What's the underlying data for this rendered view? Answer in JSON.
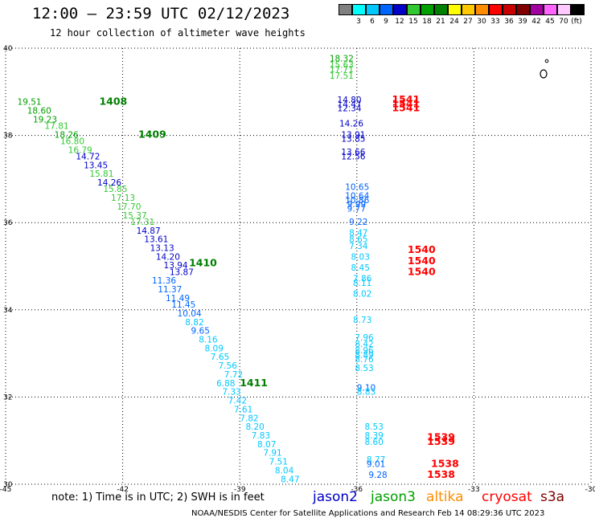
{
  "title": "12:00 – 23:59 UTC 02/12/2023",
  "subtitle": "12 hour collection of altimeter wave heights",
  "legend": {
    "unit": "(ft)",
    "bins": [
      {
        "label": "",
        "color": "#808080"
      },
      {
        "label": "3",
        "color": "#00ffff"
      },
      {
        "label": "6",
        "color": "#00c8ff"
      },
      {
        "label": "9",
        "color": "#0064ff"
      },
      {
        "label": "12",
        "color": "#0000c8"
      },
      {
        "label": "15",
        "color": "#32c832"
      },
      {
        "label": "18",
        "color": "#00a000"
      },
      {
        "label": "21",
        "color": "#008000"
      },
      {
        "label": "24",
        "color": "#ffff00"
      },
      {
        "label": "27",
        "color": "#ffc800"
      },
      {
        "label": "30",
        "color": "#ff8c00"
      },
      {
        "label": "33",
        "color": "#ff0000"
      },
      {
        "label": "36",
        "color": "#c80000"
      },
      {
        "label": "39",
        "color": "#800000"
      },
      {
        "label": "42",
        "color": "#a000a0"
      },
      {
        "label": "45",
        "color": "#ff64ff"
      },
      {
        "label": "70",
        "color": "#ffc8ff"
      },
      {
        "label": "",
        "color": "#000000"
      }
    ]
  },
  "axes": {
    "x_ticks": [
      "-45",
      "-42",
      "-39",
      "-36",
      "-33",
      "-30"
    ],
    "y_ticks": [
      "40",
      "38",
      "36",
      "34",
      "32",
      "30"
    ],
    "lon_range": [
      -45,
      -30
    ],
    "lat_range": [
      30,
      40
    ]
  },
  "note": "note: 1) Time is in UTC; 2) SWH is in feet",
  "satellites": [
    {
      "name": "jason2",
      "color": "#0000c8"
    },
    {
      "name": "jason3",
      "color": "#00a000"
    },
    {
      "name": "altika",
      "color": "#ff8c00"
    },
    {
      "name": "cryosat",
      "color": "#ff0000"
    },
    {
      "name": "s3a",
      "color": "#800000"
    }
  ],
  "credit": "NOAA/NESDIS Center for Satellite Applications and Research    Feb 14 08:29:36 UTC 2023",
  "time_labels": [
    {
      "text": "1408",
      "lon": -42.6,
      "lat": 38.7,
      "color": "#008000"
    },
    {
      "text": "1409",
      "lon": -41.6,
      "lat": 37.95,
      "color": "#008000"
    },
    {
      "text": "1410",
      "lon": -40.3,
      "lat": 35.0,
      "color": "#008000"
    },
    {
      "text": "1411",
      "lon": -39.0,
      "lat": 32.25,
      "color": "#008000"
    },
    {
      "text": "1541",
      "lon": -35.1,
      "lat": 38.75,
      "color": "#ff0000"
    },
    {
      "text": "1541",
      "lon": -35.1,
      "lat": 38.65,
      "color": "#ff0000"
    },
    {
      "text": "1541",
      "lon": -35.1,
      "lat": 38.55,
      "color": "#ff0000"
    },
    {
      "text": "1540",
      "lon": -34.7,
      "lat": 35.3,
      "color": "#ff0000"
    },
    {
      "text": "1540",
      "lon": -34.7,
      "lat": 35.05,
      "color": "#ff0000"
    },
    {
      "text": "1540",
      "lon": -34.7,
      "lat": 34.8,
      "color": "#ff0000"
    },
    {
      "text": "1539",
      "lon": -34.2,
      "lat": 31.0,
      "color": "#ff0000"
    },
    {
      "text": "1539",
      "lon": -34.2,
      "lat": 30.9,
      "color": "#ff0000"
    },
    {
      "text": "1538",
      "lon": -34.1,
      "lat": 30.4,
      "color": "#ff0000"
    },
    {
      "text": "1538",
      "lon": -34.2,
      "lat": 30.15,
      "color": "#ff0000"
    }
  ],
  "chart_data": {
    "type": "scatter",
    "title": "12:00 – 23:59 UTC 02/12/2023",
    "xlim": [
      -45,
      -30
    ],
    "ylim": [
      30,
      40
    ],
    "points": [
      {
        "lon": -44.7,
        "lat": 38.7,
        "v": "19.51"
      },
      {
        "lon": -44.45,
        "lat": 38.5,
        "v": "18.60"
      },
      {
        "lon": -44.3,
        "lat": 38.3,
        "v": "19.23"
      },
      {
        "lon": -44.0,
        "lat": 38.15,
        "v": "17.81"
      },
      {
        "lon": -43.75,
        "lat": 37.95,
        "v": "18.26"
      },
      {
        "lon": -43.6,
        "lat": 37.8,
        "v": "16.80"
      },
      {
        "lon": -43.4,
        "lat": 37.6,
        "v": "16.79"
      },
      {
        "lon": -43.2,
        "lat": 37.45,
        "v": "14.72"
      },
      {
        "lon": -43.0,
        "lat": 37.25,
        "v": "13.45"
      },
      {
        "lon": -42.85,
        "lat": 37.05,
        "v": "15.81"
      },
      {
        "lon": -42.65,
        "lat": 36.85,
        "v": "14.26"
      },
      {
        "lon": -42.5,
        "lat": 36.7,
        "v": "15.85"
      },
      {
        "lon": -42.3,
        "lat": 36.5,
        "v": "17.13"
      },
      {
        "lon": -42.15,
        "lat": 36.3,
        "v": "17.70"
      },
      {
        "lon": -42.0,
        "lat": 36.1,
        "v": "15.37"
      },
      {
        "lon": -41.8,
        "lat": 35.95,
        "v": "17.31"
      },
      {
        "lon": -41.65,
        "lat": 35.75,
        "v": "14.87"
      },
      {
        "lon": -41.45,
        "lat": 35.55,
        "v": "13.61"
      },
      {
        "lon": -41.3,
        "lat": 35.35,
        "v": "13.13"
      },
      {
        "lon": -41.15,
        "lat": 35.15,
        "v": "14.20"
      },
      {
        "lon": -40.95,
        "lat": 34.95,
        "v": "13.94"
      },
      {
        "lon": -40.8,
        "lat": 34.8,
        "v": "13.87"
      },
      {
        "lon": -41.25,
        "lat": 34.6,
        "v": "11.36"
      },
      {
        "lon": -41.1,
        "lat": 34.4,
        "v": "11.37"
      },
      {
        "lon": -40.9,
        "lat": 34.2,
        "v": "11.49"
      },
      {
        "lon": -40.75,
        "lat": 34.05,
        "v": "11.45"
      },
      {
        "lon": -40.6,
        "lat": 33.85,
        "v": "10.04"
      },
      {
        "lon": -40.4,
        "lat": 33.65,
        "v": "8.82"
      },
      {
        "lon": -40.25,
        "lat": 33.45,
        "v": "9.65"
      },
      {
        "lon": -40.05,
        "lat": 33.25,
        "v": "8.16"
      },
      {
        "lon": -39.9,
        "lat": 33.05,
        "v": "8.09"
      },
      {
        "lon": -39.75,
        "lat": 32.85,
        "v": "7.65"
      },
      {
        "lon": -39.55,
        "lat": 32.65,
        "v": "7.56"
      },
      {
        "lon": -39.4,
        "lat": 32.45,
        "v": "7.72"
      },
      {
        "lon": -39.6,
        "lat": 32.25,
        "v": "6.88"
      },
      {
        "lon": -39.45,
        "lat": 32.05,
        "v": "7.33"
      },
      {
        "lon": -39.3,
        "lat": 31.85,
        "v": "7.42"
      },
      {
        "lon": -39.15,
        "lat": 31.65,
        "v": "7.61"
      },
      {
        "lon": -39.0,
        "lat": 31.45,
        "v": "7.82"
      },
      {
        "lon": -38.85,
        "lat": 31.25,
        "v": "8.20"
      },
      {
        "lon": -38.7,
        "lat": 31.05,
        "v": "7.83"
      },
      {
        "lon": -38.55,
        "lat": 30.85,
        "v": "8.07"
      },
      {
        "lon": -38.4,
        "lat": 30.65,
        "v": "7.91"
      },
      {
        "lon": -38.25,
        "lat": 30.45,
        "v": "7.51"
      },
      {
        "lon": -38.1,
        "lat": 30.25,
        "v": "8.04"
      },
      {
        "lon": -37.95,
        "lat": 30.05,
        "v": "8.47"
      },
      {
        "lon": -36.7,
        "lat": 39.7,
        "v": "18.32"
      },
      {
        "lon": -36.7,
        "lat": 39.55,
        "v": "15.63"
      },
      {
        "lon": -36.7,
        "lat": 39.45,
        "v": "17.71"
      },
      {
        "lon": -36.7,
        "lat": 39.3,
        "v": "17.51"
      },
      {
        "lon": -36.5,
        "lat": 38.75,
        "v": "14.80"
      },
      {
        "lon": -36.5,
        "lat": 38.65,
        "v": "14.47"
      },
      {
        "lon": -36.5,
        "lat": 38.55,
        "v": "12.34"
      },
      {
        "lon": -36.45,
        "lat": 38.2,
        "v": "14.26"
      },
      {
        "lon": -36.4,
        "lat": 37.95,
        "v": "13.91"
      },
      {
        "lon": -36.4,
        "lat": 37.85,
        "v": "13.85"
      },
      {
        "lon": -36.4,
        "lat": 37.55,
        "v": "13.66"
      },
      {
        "lon": -36.4,
        "lat": 37.45,
        "v": "12.56"
      },
      {
        "lon": -36.3,
        "lat": 36.75,
        "v": "10.65"
      },
      {
        "lon": -36.3,
        "lat": 36.55,
        "v": "10.64"
      },
      {
        "lon": -36.3,
        "lat": 36.45,
        "v": "10.86"
      },
      {
        "lon": -36.25,
        "lat": 36.35,
        "v": "9.99"
      },
      {
        "lon": -36.25,
        "lat": 36.25,
        "v": "9.77"
      },
      {
        "lon": -36.2,
        "lat": 35.95,
        "v": "9.22"
      },
      {
        "lon": -36.2,
        "lat": 35.7,
        "v": "8.47"
      },
      {
        "lon": -36.2,
        "lat": 35.55,
        "v": "8.65"
      },
      {
        "lon": -36.2,
        "lat": 35.4,
        "v": "7.34"
      },
      {
        "lon": -36.15,
        "lat": 35.15,
        "v": "8.03"
      },
      {
        "lon": -36.15,
        "lat": 34.9,
        "v": "8.45"
      },
      {
        "lon": -36.1,
        "lat": 34.65,
        "v": "7.86"
      },
      {
        "lon": -36.1,
        "lat": 34.55,
        "v": "8.11"
      },
      {
        "lon": -36.1,
        "lat": 34.3,
        "v": "8.02"
      },
      {
        "lon": -36.1,
        "lat": 33.7,
        "v": "8.73"
      },
      {
        "lon": -36.05,
        "lat": 33.3,
        "v": "7.96"
      },
      {
        "lon": -36.05,
        "lat": 33.15,
        "v": "8.42"
      },
      {
        "lon": -36.05,
        "lat": 33.0,
        "v": "8.96"
      },
      {
        "lon": -36.05,
        "lat": 32.9,
        "v": "8.89"
      },
      {
        "lon": -36.05,
        "lat": 32.8,
        "v": "8.76"
      },
      {
        "lon": -36.05,
        "lat": 32.6,
        "v": "8.53"
      },
      {
        "lon": -36.0,
        "lat": 32.15,
        "v": "9.10"
      },
      {
        "lon": -36.0,
        "lat": 32.05,
        "v": "8.83"
      },
      {
        "lon": -35.8,
        "lat": 31.25,
        "v": "8.53"
      },
      {
        "lon": -35.8,
        "lat": 31.05,
        "v": "8.39"
      },
      {
        "lon": -35.8,
        "lat": 30.9,
        "v": "8.60"
      },
      {
        "lon": -35.75,
        "lat": 30.5,
        "v": "8.77"
      },
      {
        "lon": -35.75,
        "lat": 30.4,
        "v": "9.01"
      },
      {
        "lon": -35.7,
        "lat": 30.15,
        "v": "9.28"
      }
    ]
  }
}
